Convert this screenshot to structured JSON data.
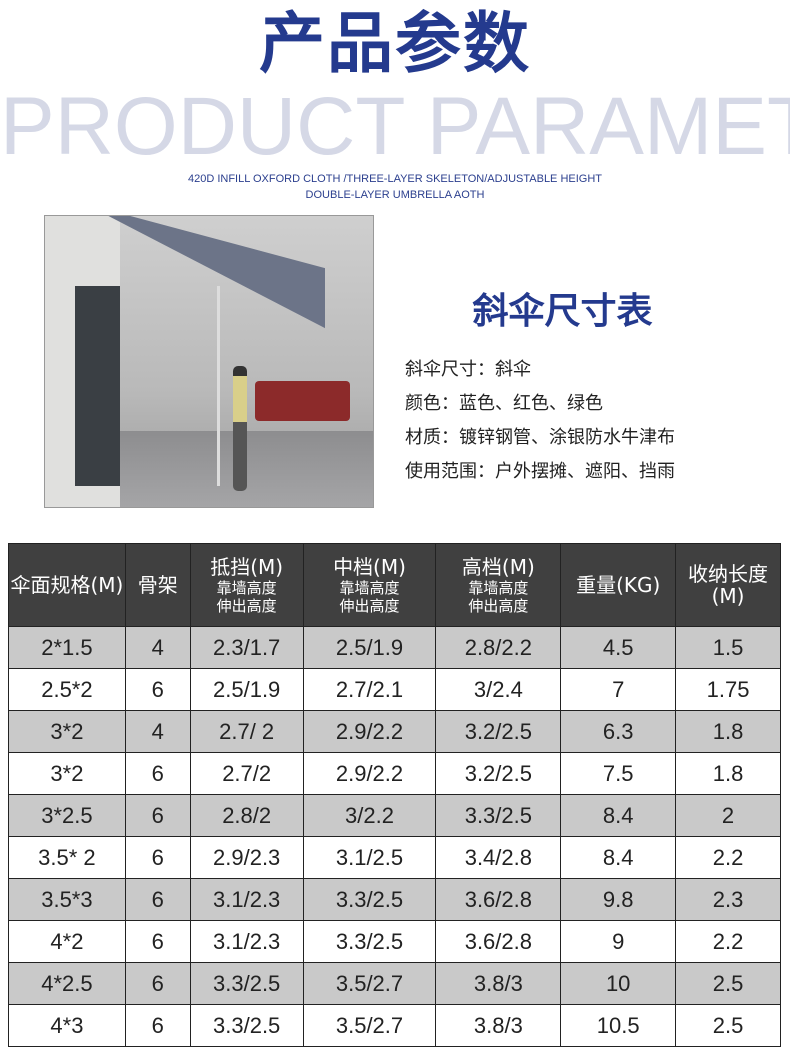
{
  "header": {
    "title": "产品参数",
    "background_word": "PRODUCT PARAMETERS",
    "subtitle_line1": "420D INFILL OXFORD CLOTH /THREE-LAYER SKELETON/ADJUSTABLE HEIGHT",
    "subtitle_line2": "DOUBLE-LAYER UMBRELLA AOTH"
  },
  "specs": {
    "title": "斜伞尺寸表",
    "lines": [
      "斜伞尺寸：斜伞",
      "颜色：蓝色、红色、绿色",
      "材质：镀锌钢管、涂银防水牛津布",
      "使用范围：户外摆摊、遮阳、挡雨"
    ]
  },
  "table": {
    "headers": [
      {
        "main": "伞面规格(M)"
      },
      {
        "main": "骨架"
      },
      {
        "main": "抵挡(M)",
        "sub1": "靠墙高度",
        "sub2": "伸出高度"
      },
      {
        "main": "中档(M)",
        "sub1": "靠墙高度",
        "sub2": "伸出高度"
      },
      {
        "main": "高档(M)",
        "sub1": "靠墙高度",
        "sub2": "伸出高度"
      },
      {
        "main": "重量(KG)"
      },
      {
        "main": "收纳长度(M)"
      }
    ],
    "rows": [
      [
        "2*1.5",
        "4",
        "2.3/1.7",
        "2.5/1.9",
        "2.8/2.2",
        "4.5",
        "1.5"
      ],
      [
        "2.5*2",
        "6",
        "2.5/1.9",
        "2.7/2.1",
        "3/2.4",
        "7",
        "1.75"
      ],
      [
        "3*2",
        "4",
        "2.7/ 2",
        "2.9/2.2",
        "3.2/2.5",
        "6.3",
        "1.8"
      ],
      [
        "3*2",
        "6",
        "2.7/2",
        "2.9/2.2",
        "3.2/2.5",
        "7.5",
        "1.8"
      ],
      [
        "3*2.5",
        "6",
        "2.8/2",
        "3/2.2",
        "3.3/2.5",
        "8.4",
        "2"
      ],
      [
        "3.5* 2",
        "6",
        "2.9/2.3",
        "3.1/2.5",
        "3.4/2.8",
        "8.4",
        "2.2"
      ],
      [
        "3.5*3",
        "6",
        "3.1/2.3",
        "3.3/2.5",
        "3.6/2.8",
        "9.8",
        "2.3"
      ],
      [
        "4*2",
        "6",
        "3.1/2.3",
        "3.3/2.5",
        "3.6/2.8",
        "9",
        "2.2"
      ],
      [
        "4*2.5",
        "6",
        "3.3/2.5",
        "3.5/2.7",
        "3.8/3",
        "10",
        "2.5"
      ],
      [
        "4*3",
        "6",
        "3.3/2.5",
        "3.5/2.7",
        "3.8/3",
        "10.5",
        "2.5"
      ]
    ]
  },
  "colors": {
    "brand_blue": "#243a8e",
    "header_bg": "#404040",
    "row_gray": "#c9c9c9"
  }
}
